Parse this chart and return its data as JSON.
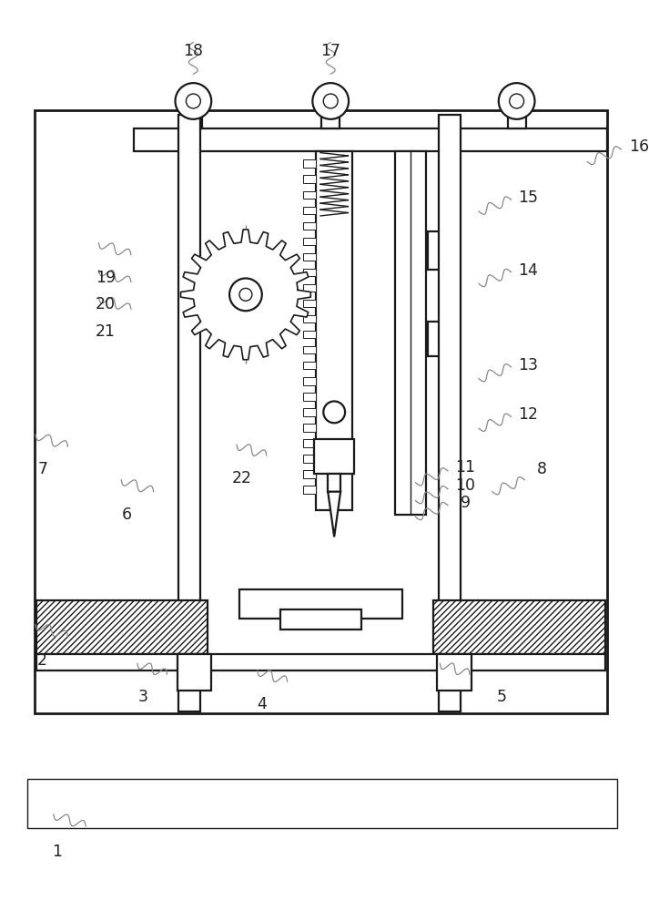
{
  "bg_color": "#ffffff",
  "line_color": "#1a1a1a",
  "wave_color": "#888888",
  "fig_width": 7.13,
  "fig_height": 10.0,
  "lw_main": 1.6,
  "lw_thin": 1.0,
  "lw_frame": 2.0
}
